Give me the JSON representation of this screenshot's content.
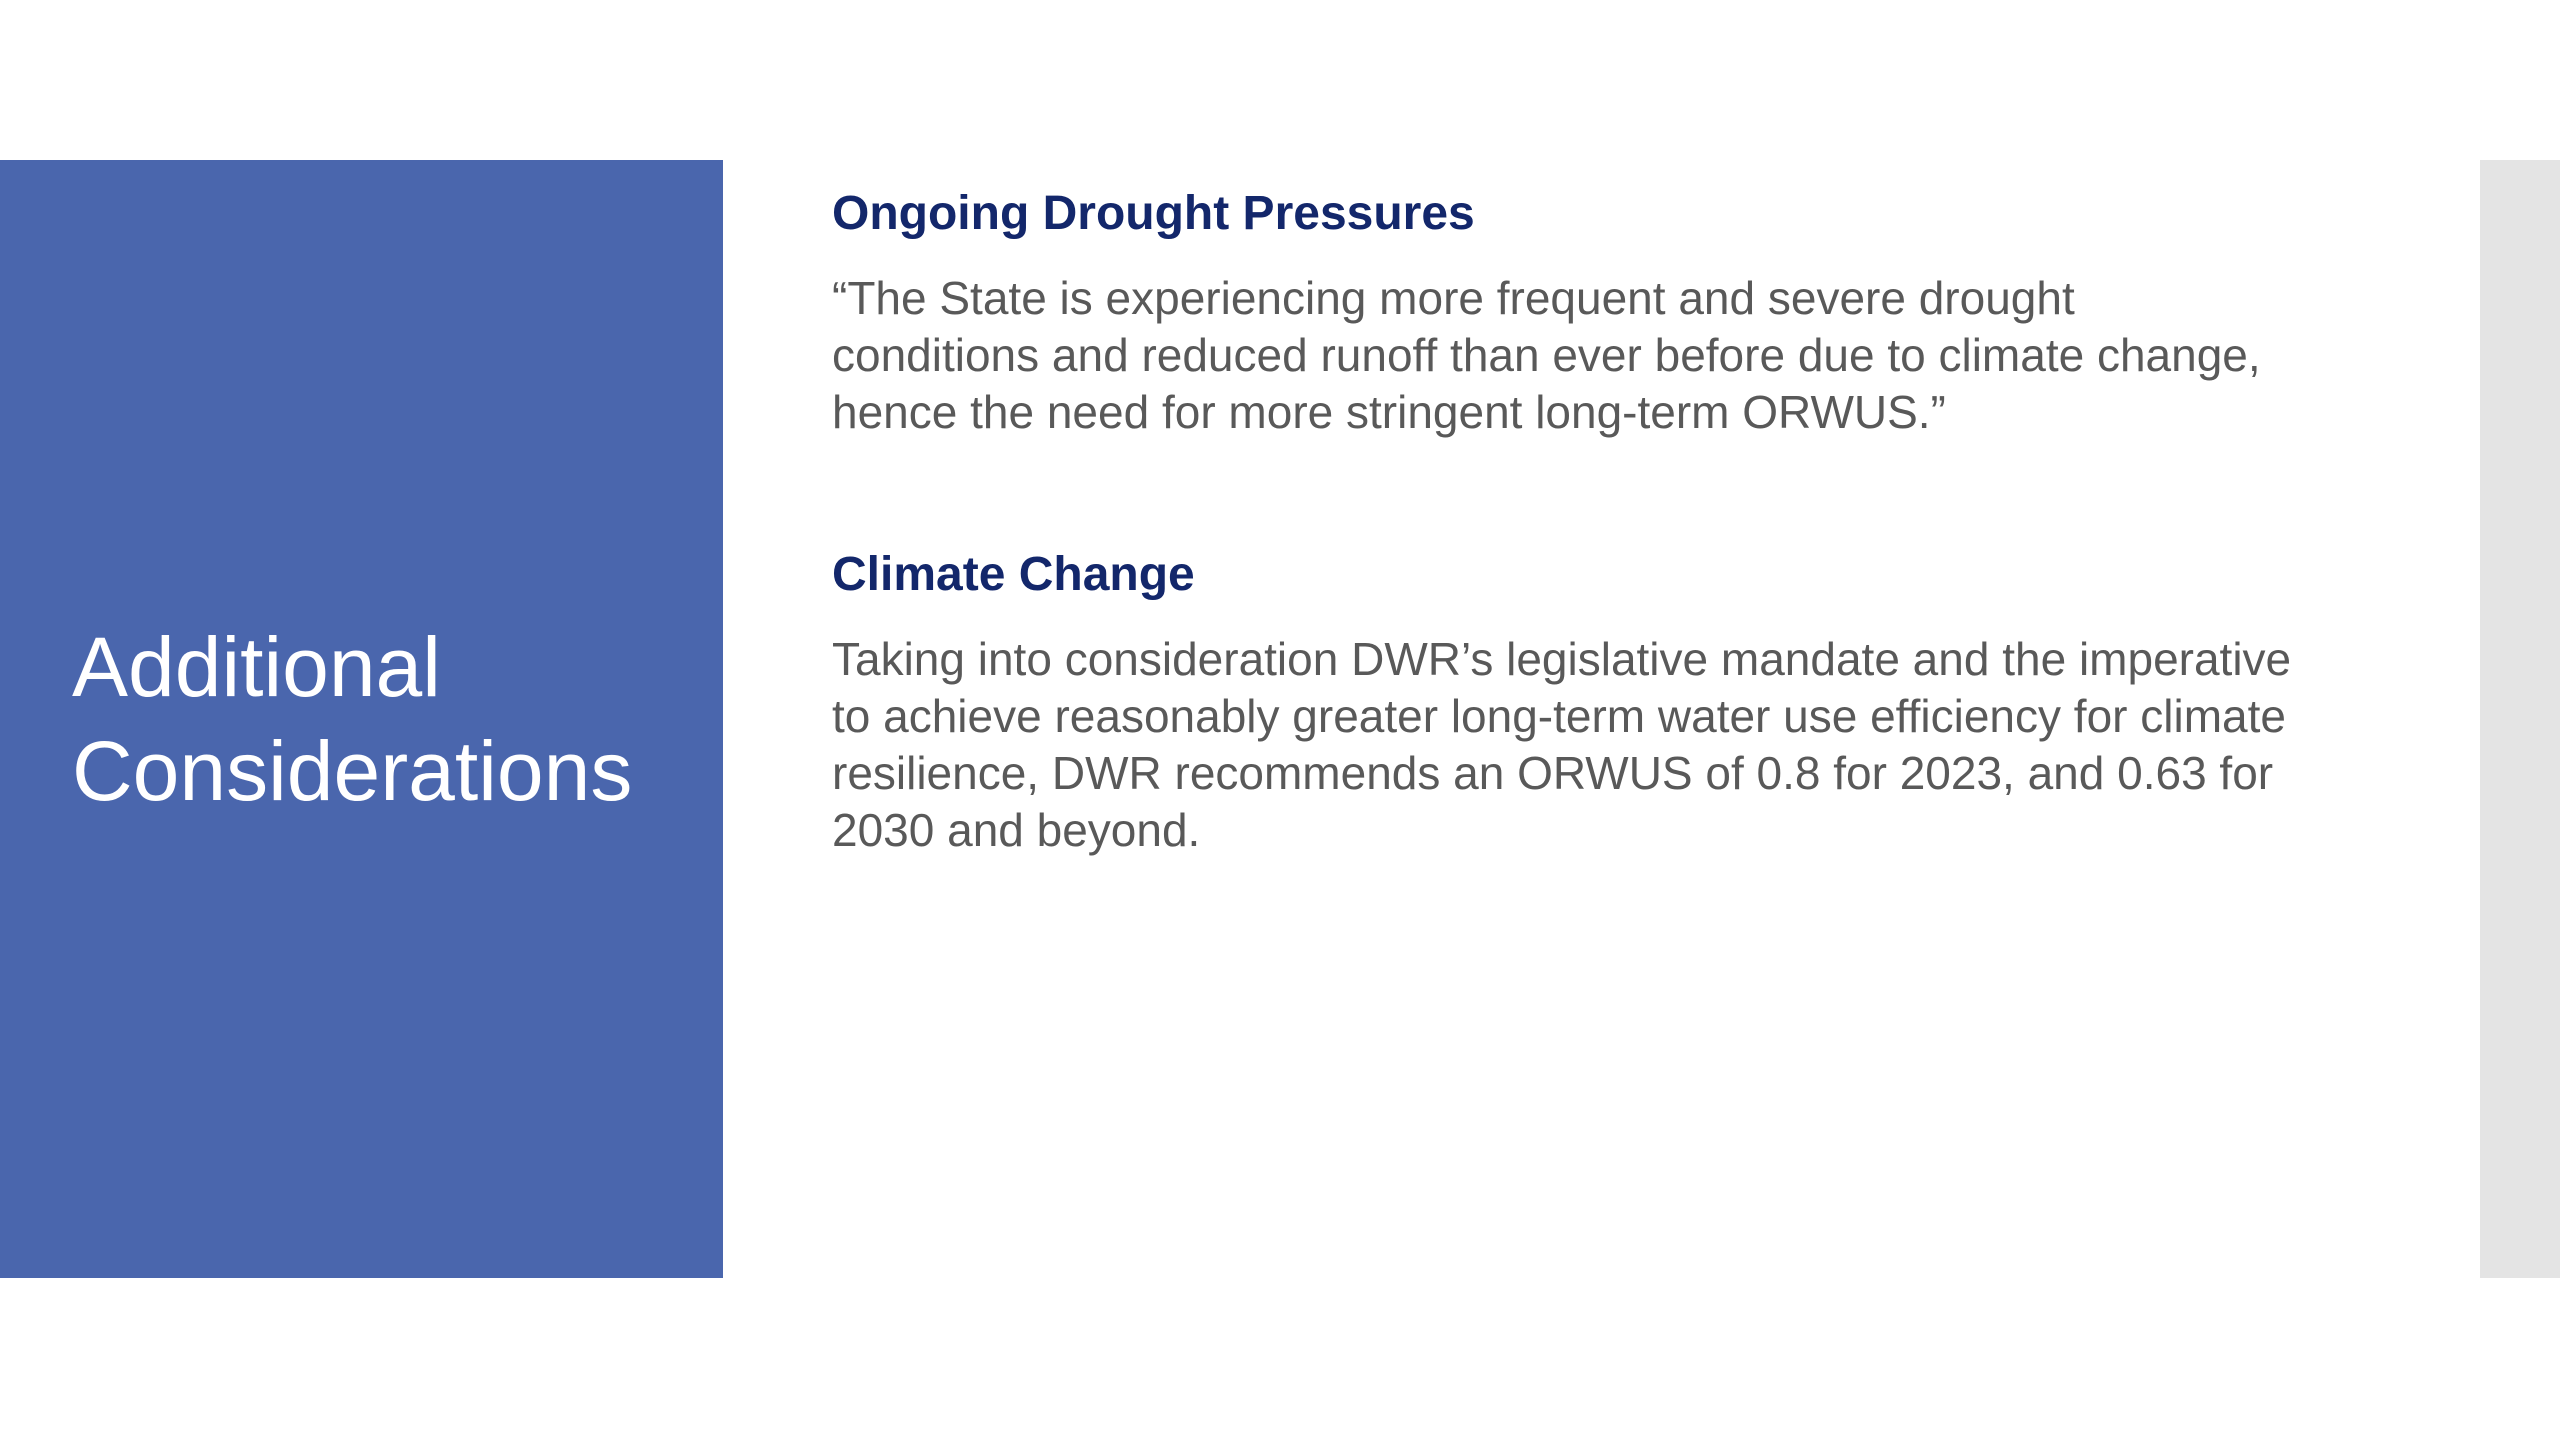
{
  "slide": {
    "title": "Additional Considerations",
    "colors": {
      "title_panel": "#4a66ad",
      "heading": "#13276b",
      "body_text": "#595959",
      "right_strip": "#e4e4e4",
      "background": "#ffffff"
    },
    "sections": [
      {
        "heading": "Ongoing Drought Pressures",
        "body": "“The State is experiencing more frequent and severe drought conditions and reduced runoff than ever before due to climate change, hence the need for more stringent long-term ORWUS.”"
      },
      {
        "heading": "Climate Change",
        "body": "Taking into consideration DWR’s legislative mandate and the imperative to achieve reasonably greater long-term water use efficiency for climate resilience, DWR recommends an ORWUS of 0.8 for 2023, and 0.63 for 2030 and beyond."
      }
    ]
  }
}
